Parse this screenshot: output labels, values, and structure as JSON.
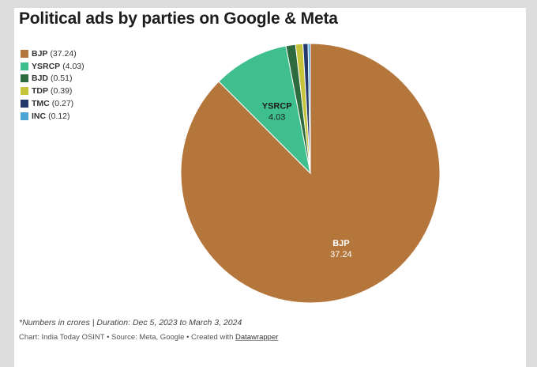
{
  "title": "Political ads by parties on Google & Meta",
  "footnote": "*Numbers in crores | Duration: Dec 5, 2023 to March 3, 2024",
  "credit": {
    "text": "Chart: India Today OSINT • Source: Meta, Google • Created with ",
    "link": "Datawrapper"
  },
  "chart_data": {
    "type": "pie",
    "legend_position": "top-left",
    "slices": [
      {
        "label": "BJP",
        "value": 37.24,
        "color": "#b5763c",
        "legend_text": "BJP",
        "legend_value": "(37.24)",
        "show_label": true,
        "label_value": "37.24",
        "label_color": "#ffffff"
      },
      {
        "label": "YSRCP",
        "value": 4.03,
        "color": "#3fbf8d",
        "legend_text": "YSRCP",
        "legend_value": "(4.03)",
        "show_label": true,
        "label_value": "4.03",
        "label_color": "#1d1d1d"
      },
      {
        "label": "BJD",
        "value": 0.51,
        "color": "#2e6b3e",
        "legend_text": "BJD",
        "legend_value": "(0.51)",
        "show_label": false
      },
      {
        "label": "TDP",
        "value": 0.39,
        "color": "#c5c43a",
        "legend_text": "TDP",
        "legend_value": "(0.39)",
        "show_label": false
      },
      {
        "label": "TMC",
        "value": 0.27,
        "color": "#25386b",
        "legend_text": "TMC",
        "legend_value": "(0.27)",
        "show_label": false
      },
      {
        "label": "INC",
        "value": 0.12,
        "color": "#4ba3d6",
        "legend_text": "INC",
        "legend_value": "(0.12)",
        "show_label": false
      }
    ]
  }
}
